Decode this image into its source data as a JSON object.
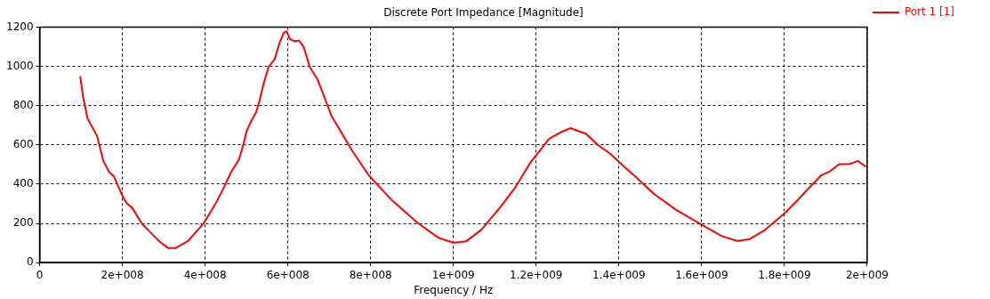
{
  "chart_data": {
    "type": "line",
    "title": "Discrete Port Impedance [Magnitude]",
    "xlabel": "Frequency / Hz",
    "xlim": [
      0,
      2000000000.0
    ],
    "xticks": [
      0,
      {
        "value": 200000000.0,
        "label": "2e+008"
      },
      {
        "value": 400000000.0,
        "label": "4e+008"
      },
      {
        "value": 600000000.0,
        "label": "6e+008"
      },
      {
        "value": 800000000.0,
        "label": "8e+008"
      },
      {
        "value": 1000000000.0,
        "label": "1e+009"
      },
      {
        "value": 1200000000.0,
        "label": "1.2e+009"
      },
      {
        "value": 1400000000.0,
        "label": "1.4e+009"
      },
      {
        "value": 1600000000.0,
        "label": "1.6e+009"
      },
      {
        "value": 1800000000.0,
        "label": "1.8e+009"
      },
      {
        "value": 2000000000.0,
        "label": "2e+009"
      }
    ],
    "ylim": [
      0,
      1200
    ],
    "yticks": [
      0,
      200,
      400,
      600,
      800,
      1000,
      1200
    ],
    "grid": true,
    "legend": "top right",
    "marker": "none",
    "line_style": "solid",
    "series": [
      {
        "name": "Port 1 [1]",
        "color": "#ff0000",
        "x": [
          98000000.0,
          105000000.0,
          116000000.0,
          139000000.0,
          154000000.0,
          168000000.0,
          180000000.0,
          198000000.0,
          210000000.0,
          224000000.0,
          247000000.0,
          273000000.0,
          292000000.0,
          310000000.0,
          329000000.0,
          359000000.0,
          396000000.0,
          426000000.0,
          445000000.0,
          463000000.0,
          482000000.0,
          493000000.0,
          500000000.0,
          512000000.0,
          523000000.0,
          530000000.0,
          541000000.0,
          553000000.0,
          568000000.0,
          579000000.0,
          590000000.0,
          597000000.0,
          605000000.0,
          616000000.0,
          627000000.0,
          638000000.0,
          653000000.0,
          672000000.0,
          691000000.0,
          705000000.0,
          732000000.0,
          754000000.0,
          795000000.0,
          851000000.0,
          911000000.0,
          963000000.0,
          1000000000.0,
          1030000000.0,
          1067000000.0,
          1112000000.0,
          1149000000.0,
          1186000000.0,
          1201000000.0,
          1231000000.0,
          1261000000.0,
          1283000000.0,
          1321000000.0,
          1350000000.0,
          1379000000.0,
          1403000000.0,
          1440000000.0,
          1485000000.0,
          1537000000.0,
          1602000000.0,
          1649000000.0,
          1686000000.0,
          1716000000.0,
          1753000000.0,
          1802000000.0,
          1832000000.0,
          1858000000.0,
          1888000000.0,
          1910000000.0,
          1932000000.0,
          1958000000.0,
          1977000000.0,
          1997000000.0
        ],
        "values": [
          950,
          845,
          733,
          645,
          518,
          462,
          438,
          350,
          303,
          279,
          199,
          143,
          104,
          75,
          75,
          111,
          199,
          303,
          382,
          462,
          526,
          606,
          669,
          725,
          765,
          813,
          908,
          996,
          1036,
          1115,
          1171,
          1179,
          1139,
          1128,
          1131,
          1099,
          996,
          932,
          828,
          749,
          653,
          574,
          446,
          319,
          207,
          128,
          102,
          108,
          167,
          279,
          382,
          510,
          550,
          630,
          666,
          685,
          656,
          598,
          555,
          507,
          438,
          350,
          271,
          191,
          135,
          111,
          120,
          167,
          255,
          319,
          378,
          443,
          465,
          502,
          503,
          518,
          489
        ]
      }
    ]
  }
}
